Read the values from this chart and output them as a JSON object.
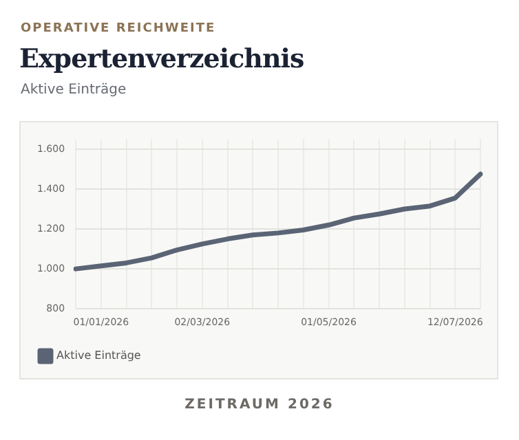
{
  "chart_data": {
    "type": "line",
    "title": "Expertenverzeichnis",
    "subtitle": "Aktive Einträge",
    "annotations": [
      "OPERATIVE REICHWEITE",
      "ZEITRAUM 2026"
    ],
    "categories": [
      null,
      "01/01/2026",
      null,
      null,
      null,
      "02/03/2026",
      null,
      null,
      null,
      null,
      "01/05/2026",
      null,
      null,
      null,
      null,
      "12/07/2026",
      null
    ],
    "series": [
      {
        "name": "Aktive Einträge",
        "color": "#5a6475",
        "values": [
          1000,
          1015,
          1030,
          1055,
          1095,
          1125,
          1150,
          1170,
          1180,
          1195,
          1220,
          1255,
          1275,
          1300,
          1315,
          1355,
          1475
        ]
      }
    ],
    "ylim": [
      800,
      1650
    ],
    "yticks": [
      800,
      {
        "value": 1000,
        "label": "1.000"
      },
      {
        "value": 1200,
        "label": "1.200"
      },
      {
        "value": 1400,
        "label": "1.400"
      },
      {
        "value": 1600,
        "label": "1.600"
      }
    ],
    "grid": true,
    "legend": "bottom left",
    "marker": "none",
    "line_style": "solid"
  }
}
